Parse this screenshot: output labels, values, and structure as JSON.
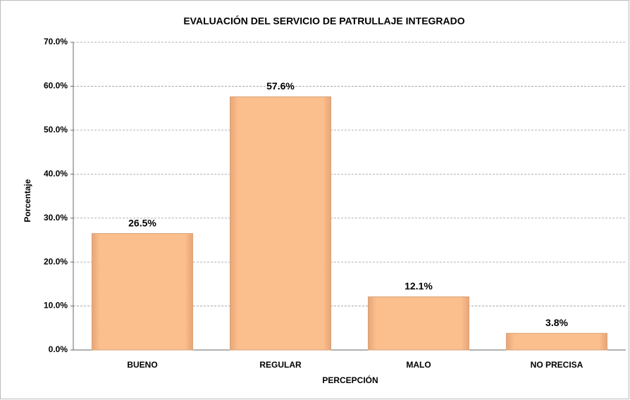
{
  "chart_data": {
    "type": "bar",
    "title": "EVALUACIÓN DEL SERVICIO DE PATRULLAJE INTEGRADO",
    "x_label": "PERCEPCIÓN",
    "y_label": "Porcentaje",
    "categories": [
      "BUENO",
      "REGULAR",
      "MALO",
      "NO PRECISA"
    ],
    "values": [
      26.5,
      57.6,
      12.1,
      3.8
    ],
    "value_labels": [
      "26.5%",
      "57.6%",
      "12.1%",
      "3.8%"
    ],
    "color": "#fbbf8d",
    "ylim": [
      0,
      70
    ],
    "yticks": [
      {
        "value": 0,
        "label": "0.0%"
      },
      {
        "value": 10,
        "label": "10.0%"
      },
      {
        "value": 20,
        "label": "20.0%"
      },
      {
        "value": 30,
        "label": "30.0%"
      },
      {
        "value": 40,
        "label": "40.0%"
      },
      {
        "value": 50,
        "label": "50.0%"
      },
      {
        "value": 60,
        "label": "60.0%"
      },
      {
        "value": 70,
        "label": "70.0%"
      }
    ],
    "grid": true
  }
}
